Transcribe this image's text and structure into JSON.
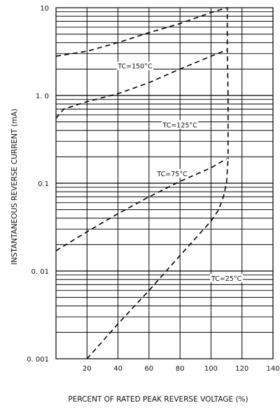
{
  "chart_data": {
    "type": "line",
    "xlabel": "PERCENT OF RATED PEAK REVERSE VOLTAGE (%)",
    "ylabel": "INSTANTANEOUS REVERSE CURRENT   (mA)",
    "xlim": [
      0,
      140
    ],
    "ylim": [
      0.001,
      10
    ],
    "y_scale": "log",
    "grid": true,
    "x_ticks": [
      20,
      40,
      60,
      80,
      100,
      120,
      140
    ],
    "x_tick_labels": [
      "20",
      "40",
      "60",
      "80",
      "100",
      "120",
      "140"
    ],
    "y_ticks": [
      0.001,
      0.01,
      0.1,
      1,
      10
    ],
    "y_tick_labels": [
      "0. 001",
      "0. 01",
      "0.1",
      "1. 0",
      "10"
    ],
    "series": [
      {
        "name": "TC=150°C",
        "line_style": "dashed",
        "x": [
          0,
          20,
          40,
          60,
          80,
          100,
          110,
          110.5,
          110.5,
          111,
          111,
          111
        ],
        "y": [
          2.8,
          3.2,
          4.0,
          5.2,
          6.6,
          8.8,
          10,
          10,
          3.4,
          1.0,
          0.3,
          0.19
        ]
      },
      {
        "name": "TC=125°C",
        "line_style": "dashed",
        "x": [
          0,
          5,
          20,
          40,
          60,
          80,
          100,
          110
        ],
        "y": [
          0.55,
          0.7,
          0.85,
          1.05,
          1.4,
          2.0,
          2.8,
          3.3
        ]
      },
      {
        "name": "TC=75°C",
        "line_style": "dashed",
        "x": [
          0,
          20,
          40,
          60,
          80,
          100,
          110
        ],
        "y": [
          0.017,
          0.028,
          0.045,
          0.07,
          0.105,
          0.15,
          0.19
        ]
      },
      {
        "name": "TC=25°C",
        "line_style": "dashed",
        "x": [
          20,
          40,
          60,
          80,
          100,
          105,
          108,
          110,
          111
        ],
        "y": [
          0.001,
          0.0025,
          0.006,
          0.015,
          0.037,
          0.05,
          0.07,
          0.1,
          0.19
        ]
      }
    ],
    "annotations": [
      {
        "text": "TC=150°C",
        "series": "TC=150°C"
      },
      {
        "text": "TC=125°C",
        "series": "TC=125°C"
      },
      {
        "text": "TC=75°C",
        "series": "TC=75°C"
      },
      {
        "text": "TC=25°C",
        "series": "TC=25°C"
      }
    ]
  }
}
